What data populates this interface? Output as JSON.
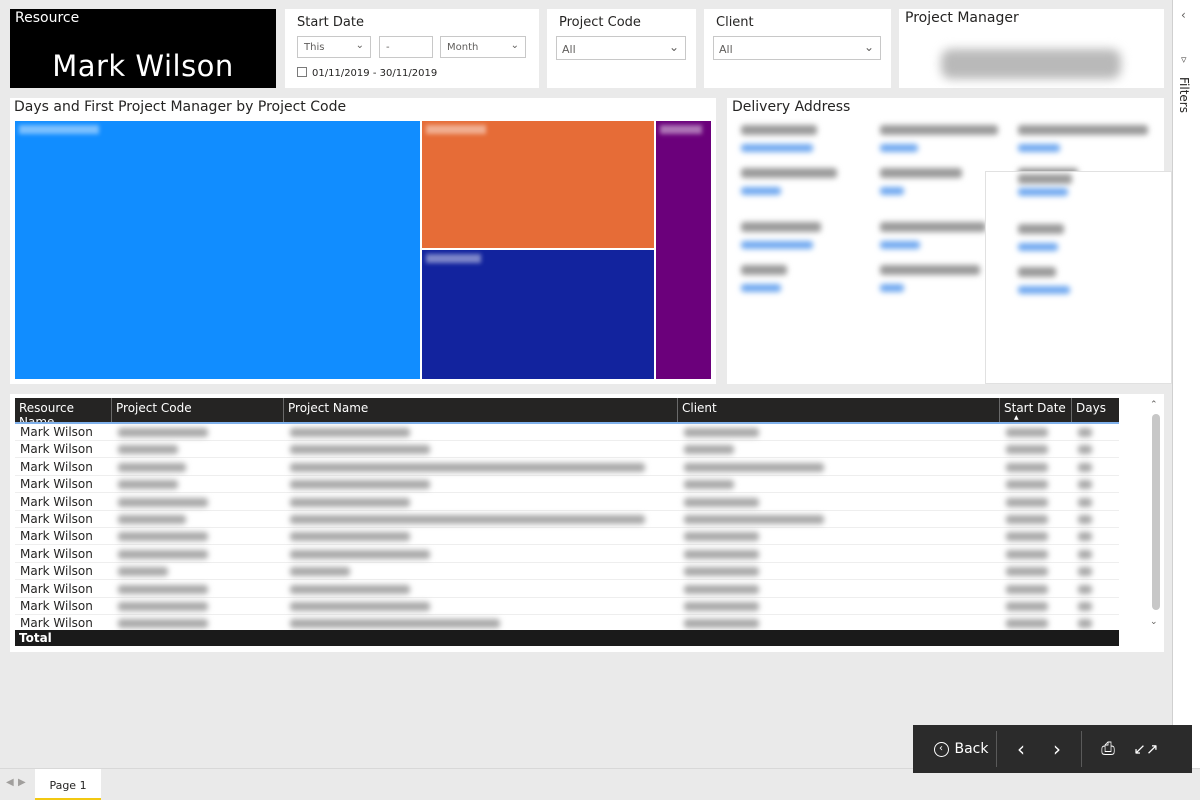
{
  "resource": {
    "label": "Resource",
    "value": "Mark Wilson"
  },
  "start_date": {
    "title": "Start Date",
    "relative_mode": "This",
    "count": "-",
    "unit": "Month",
    "range": "01/11/2019 - 30/11/2019"
  },
  "project_code": {
    "title": "Project Code",
    "selected": "All"
  },
  "client": {
    "title": "Client",
    "selected": "All"
  },
  "project_manager": {
    "title": "Project Manager"
  },
  "treemap": {
    "title": "Days and First Project Manager by Project Code",
    "colors": [
      "#118dff",
      "#e66c37",
      "#12239e",
      "#6b007b"
    ]
  },
  "delivery_address": {
    "title": "Delivery Address"
  },
  "table": {
    "columns": [
      "Resource Name",
      "Project Code",
      "Project Name",
      "Client",
      "Start Date",
      "Days"
    ],
    "rows": [
      "Mark Wilson",
      "Mark Wilson",
      "Mark Wilson",
      "Mark Wilson",
      "Mark Wilson",
      "Mark Wilson",
      "Mark Wilson",
      "Mark Wilson",
      "Mark Wilson",
      "Mark Wilson",
      "Mark Wilson",
      "Mark Wilson"
    ],
    "total_label": "Total"
  },
  "filters_pane": {
    "label": "Filters"
  },
  "tabs": {
    "page1": "Page 1"
  },
  "nav": {
    "back": "Back"
  }
}
